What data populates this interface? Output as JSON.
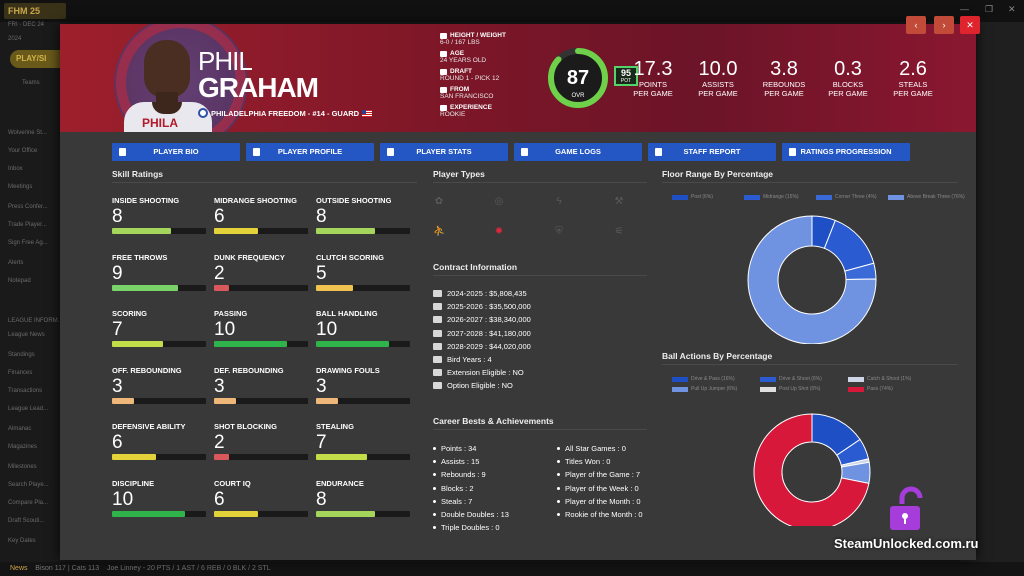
{
  "app": {
    "logo": "25",
    "sidebar": [
      "FRI · DEC 24",
      "2024",
      "Teams",
      "Wolverine St...",
      "Your Office",
      "Inbox",
      "Meetings",
      "Press Confer...",
      "Trade Player...",
      "Sign Free Ag...",
      "Alerts",
      "Notepad",
      "LEAGUE INFORM...",
      "League News",
      "Standings",
      "Finances",
      "Transactions",
      "League Lead...",
      "Almanac",
      "Magazines",
      "Milestones",
      "Search Playe...",
      "Compare Pla...",
      "Draft Scouti...",
      "Key Dates"
    ],
    "play_label": "PLAY/SI",
    "ticker": {
      "news": "News",
      "bison": "Bison",
      "bison_score": "117",
      "cats": "Cats",
      "cats_score": "113",
      "headline": "Joe Linney - 20 PTS / 1 AST / 6 REB / 0 BLK / 2 STL"
    }
  },
  "player": {
    "first_name": "PHIL",
    "last_name": "GRAHAM",
    "team_line": "PHILADELPHIA FREEDOM - #14 - GUARD",
    "jersey_text": "PHILA",
    "bio": {
      "height_label": "HEIGHT / WEIGHT",
      "height_value": "6-0 / 167 LBS",
      "age_label": "AGE",
      "age_value": "24 YEARS OLD",
      "draft_label": "DRAFT",
      "draft_value": "ROUND 1 - PICK 12",
      "from_label": "FROM",
      "from_value": "SAN FRANCISCO",
      "exp_label": "EXPERIENCE",
      "exp_value": "ROOKIE"
    },
    "ovr": {
      "value": "87",
      "label": "OVR",
      "fraction": 0.87,
      "color": "#6fd14a"
    },
    "pot": {
      "value": "95",
      "label": "POT"
    },
    "stats": [
      {
        "value": "17.3",
        "label": "POINTS\nPER GAME"
      },
      {
        "value": "10.0",
        "label": "ASSISTS\nPER GAME"
      },
      {
        "value": "3.8",
        "label": "REBOUNDS\nPER GAME"
      },
      {
        "value": "0.3",
        "label": "BLOCKS\nPER GAME"
      },
      {
        "value": "2.6",
        "label": "STEALS\nPER GAME"
      }
    ]
  },
  "tabs": [
    "PLAYER BIO",
    "PLAYER PROFILE",
    "PLAYER STATS",
    "GAME LOGS",
    "STAFF REPORT",
    "RATINGS PROGRESSION"
  ],
  "sections": {
    "skills": "Skill Ratings",
    "types": "Player Types",
    "contract": "Contract Information",
    "career": "Career Bests & Achievements",
    "floor": "Floor Range By Percentage",
    "ball": "Ball Actions By Percentage"
  },
  "skills": [
    {
      "name": "INSIDE SHOOTING",
      "value": 8,
      "color": "#a3d65a"
    },
    {
      "name": "MIDRANGE SHOOTING",
      "value": 6,
      "color": "#e3d23a"
    },
    {
      "name": "OUTSIDE SHOOTING",
      "value": 8,
      "color": "#a3d65a"
    },
    {
      "name": "FREE THROWS",
      "value": 9,
      "color": "#79d36a"
    },
    {
      "name": "DUNK FREQUENCY",
      "value": 2,
      "color": "#d9585c"
    },
    {
      "name": "CLUTCH SCORING",
      "value": 5,
      "color": "#f0c250"
    },
    {
      "name": "SCORING",
      "value": 7,
      "color": "#c4de4a"
    },
    {
      "name": "PASSING",
      "value": 10,
      "color": "#2fb44b"
    },
    {
      "name": "BALL HANDLING",
      "value": 10,
      "color": "#2fb44b"
    },
    {
      "name": "OFF. REBOUNDING",
      "value": 3,
      "color": "#f0b77a"
    },
    {
      "name": "DEF. REBOUNDING",
      "value": 3,
      "color": "#f0b77a"
    },
    {
      "name": "DRAWING FOULS",
      "value": 3,
      "color": "#f0b77a"
    },
    {
      "name": "DEFENSIVE ABILITY",
      "value": 6,
      "color": "#e3d23a"
    },
    {
      "name": "SHOT BLOCKING",
      "value": 2,
      "color": "#d9585c"
    },
    {
      "name": "STEALING",
      "value": 7,
      "color": "#c4de4a"
    },
    {
      "name": "DISCIPLINE",
      "value": 10,
      "color": "#2fb44b"
    },
    {
      "name": "COURT IQ",
      "value": 6,
      "color": "#e3d23a"
    },
    {
      "name": "ENDURANCE",
      "value": 8,
      "color": "#a3d65a"
    }
  ],
  "player_types": [
    {
      "icon": "cog-type-icon",
      "active": false
    },
    {
      "icon": "target-type-icon",
      "active": false
    },
    {
      "icon": "lightning-type-icon",
      "active": false
    },
    {
      "icon": "hammer-type-icon",
      "active": false
    },
    {
      "icon": "guard-type-icon",
      "active": true
    },
    {
      "icon": "flame-type-icon",
      "active": true
    },
    {
      "icon": "shield-type-icon",
      "active": false
    },
    {
      "icon": "sweep-type-icon",
      "active": false
    }
  ],
  "contract": [
    "2024-2025 : $5,808,435",
    "2025-2026 : $35,500,000",
    "2026-2027 : $38,340,000",
    "2027-2028 : $41,180,000",
    "2028-2029 : $44,020,000"
  ],
  "contract_extra": [
    {
      "label": "Bird Years",
      "value": "4"
    },
    {
      "label": "Extension Eligible",
      "value": "NO"
    },
    {
      "label": "Option Eligible",
      "value": "NO"
    }
  ],
  "career_left": [
    {
      "label": "Points",
      "value": "34"
    },
    {
      "label": "Assists",
      "value": "15"
    },
    {
      "label": "Rebounds",
      "value": "9"
    },
    {
      "label": "Blocks",
      "value": "2"
    },
    {
      "label": "Steals",
      "value": "7"
    },
    {
      "label": "Double Doubles",
      "value": "13"
    },
    {
      "label": "Triple Doubles",
      "value": "0"
    }
  ],
  "career_right": [
    {
      "label": "All Star Games",
      "value": "0"
    },
    {
      "label": "Titles Won",
      "value": "0"
    },
    {
      "label": "Player of the Game",
      "value": "7"
    },
    {
      "label": "Player of the Week",
      "value": "0"
    },
    {
      "label": "Player of the Month",
      "value": "0"
    },
    {
      "label": "Rookie of the Month",
      "value": "0"
    }
  ],
  "chart_data": [
    {
      "type": "pie",
      "title": "Floor Range By Percentage",
      "categories": [
        "Post (6%)",
        "Midrange (15%)",
        "Corner Three (4%)",
        "Above Break Three (76%)"
      ],
      "values": [
        6,
        15,
        4,
        76
      ],
      "colors": [
        "#1f4fc4",
        "#2a5bd0",
        "#3a6ad8",
        "#6f93e0"
      ],
      "legend": "top"
    },
    {
      "type": "pie",
      "title": "Ball Actions By Percentage",
      "categories": [
        "Drive & Pass (16%)",
        "Drive & Shoot (6%)",
        "Catch & Shoot (1%)",
        "Pull Up Jumper (6%)",
        "Post Up Shot (0%)",
        "Pass (74%)"
      ],
      "values": [
        16,
        6,
        1,
        6,
        0,
        74
      ],
      "colors": [
        "#1f4fc4",
        "#2a5bd0",
        "#cfd6e6",
        "#6f93e0",
        "#e0e0e0",
        "#d8183a"
      ],
      "legend": "top"
    }
  ],
  "watermark": "SteamUnlocked.com.ru"
}
